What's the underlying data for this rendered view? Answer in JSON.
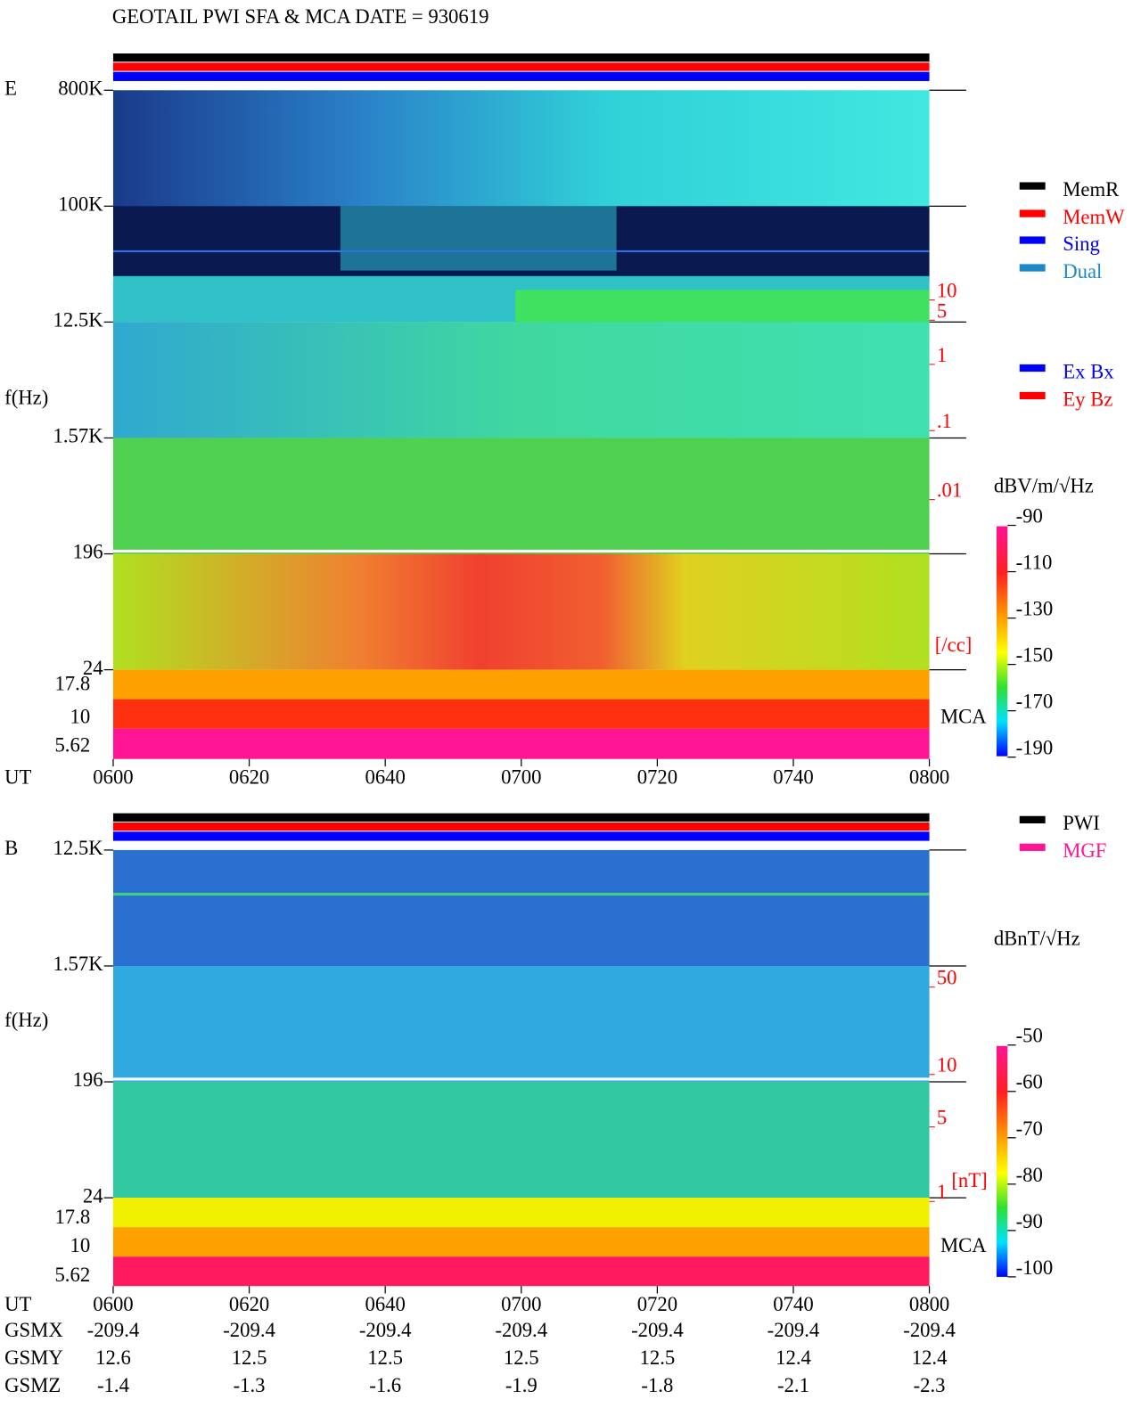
{
  "title": "GEOTAIL  PWI SFA & MCA   DATE = 930619",
  "panels": [
    {
      "label": "E",
      "y_label": "f(Hz)",
      "freq_ticks": [
        "800K",
        "100K",
        "12.5K",
        "1.57K",
        "196",
        "24"
      ],
      "mca_ticks": [
        "17.8",
        "10",
        "5.62"
      ],
      "mca_label": "MCA",
      "density_ticks": [
        "10",
        "5",
        "1",
        ".1",
        ".01"
      ],
      "density_unit": "[/cc]",
      "time_label": "UT",
      "time_ticks": [
        "0600",
        "0620",
        "0640",
        "0700",
        "0720",
        "0740",
        "0800"
      ],
      "colorbar": {
        "unit": "dBV/m/√Hz",
        "ticks": [
          -90,
          -110,
          -130,
          -150,
          -170,
          -190
        ]
      },
      "legend": [
        {
          "name": "MemR",
          "color": "#000000"
        },
        {
          "name": "MemW",
          "color": "#ff0000"
        },
        {
          "name": "Sing",
          "color": "#0000ff"
        },
        {
          "name": "Dual",
          "color": "#1e88c8"
        },
        {
          "name": "Ex Bx",
          "color": "#0000ff"
        },
        {
          "name": "Ey Bz",
          "color": "#ff0000"
        }
      ]
    },
    {
      "label": "B",
      "y_label": "f(Hz)",
      "freq_ticks": [
        "12.5K",
        "1.57K",
        "196",
        "24"
      ],
      "mca_ticks": [
        "17.8",
        "10",
        "5.62"
      ],
      "mca_label": "MCA",
      "density_ticks": [
        "50",
        "10",
        "5",
        "1"
      ],
      "density_unit": "[nT]",
      "time_label": "UT",
      "time_ticks": [
        "0600",
        "0620",
        "0640",
        "0700",
        "0720",
        "0740",
        "0800"
      ],
      "colorbar": {
        "unit": "dBnT/√Hz",
        "ticks": [
          -50,
          -60,
          -70,
          -80,
          -90,
          -100
        ]
      },
      "legend": [
        {
          "name": "PWI",
          "color": "#000000"
        },
        {
          "name": "MGF",
          "color": "#ff1493"
        }
      ]
    }
  ],
  "orbit": [
    {
      "label": "GSMX",
      "values": [
        -209.4,
        -209.4,
        -209.4,
        -209.4,
        -209.4,
        -209.4,
        -209.4
      ]
    },
    {
      "label": "GSMY",
      "values": [
        12.6,
        12.5,
        12.5,
        12.5,
        12.5,
        12.4,
        12.4
      ]
    },
    {
      "label": "GSMZ",
      "values": [
        -1.4,
        -1.3,
        -1.6,
        -1.9,
        -1.8,
        -2.1,
        -2.3
      ]
    }
  ]
}
